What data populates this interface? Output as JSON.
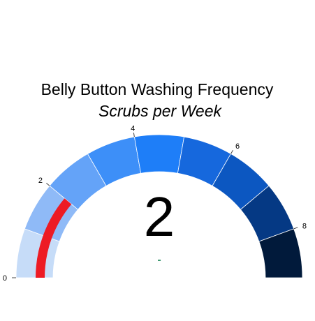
{
  "chart_data": {
    "type": "gauge",
    "title": "Belly Button Washing Frequency",
    "subtitle": "Scrubs per Week",
    "value": 2,
    "value_label": "2",
    "delta_label": "-",
    "range": [
      0,
      9
    ],
    "tick_values": [
      0,
      2,
      4,
      6,
      8
    ],
    "tick_labels": [
      "0",
      "2",
      "4",
      "6",
      "8"
    ],
    "steps": [
      {
        "range": [
          0,
          1
        ],
        "color": "#c6dcf8"
      },
      {
        "range": [
          1,
          2
        ],
        "color": "#8fbaf7"
      },
      {
        "range": [
          2,
          3
        ],
        "color": "#64a3f8"
      },
      {
        "range": [
          3,
          4
        ],
        "color": "#3d8ff8"
      },
      {
        "range": [
          4,
          5
        ],
        "color": "#1e7ef8"
      },
      {
        "range": [
          5,
          6
        ],
        "color": "#1668dd"
      },
      {
        "range": [
          6,
          7
        ],
        "color": "#0c57c1"
      },
      {
        "range": [
          7,
          8
        ],
        "color": "#053984"
      },
      {
        "range": [
          8,
          9
        ],
        "color": "#011a3b"
      }
    ],
    "bar_color": "#ed1b24",
    "delta_color": "#3d9970"
  }
}
